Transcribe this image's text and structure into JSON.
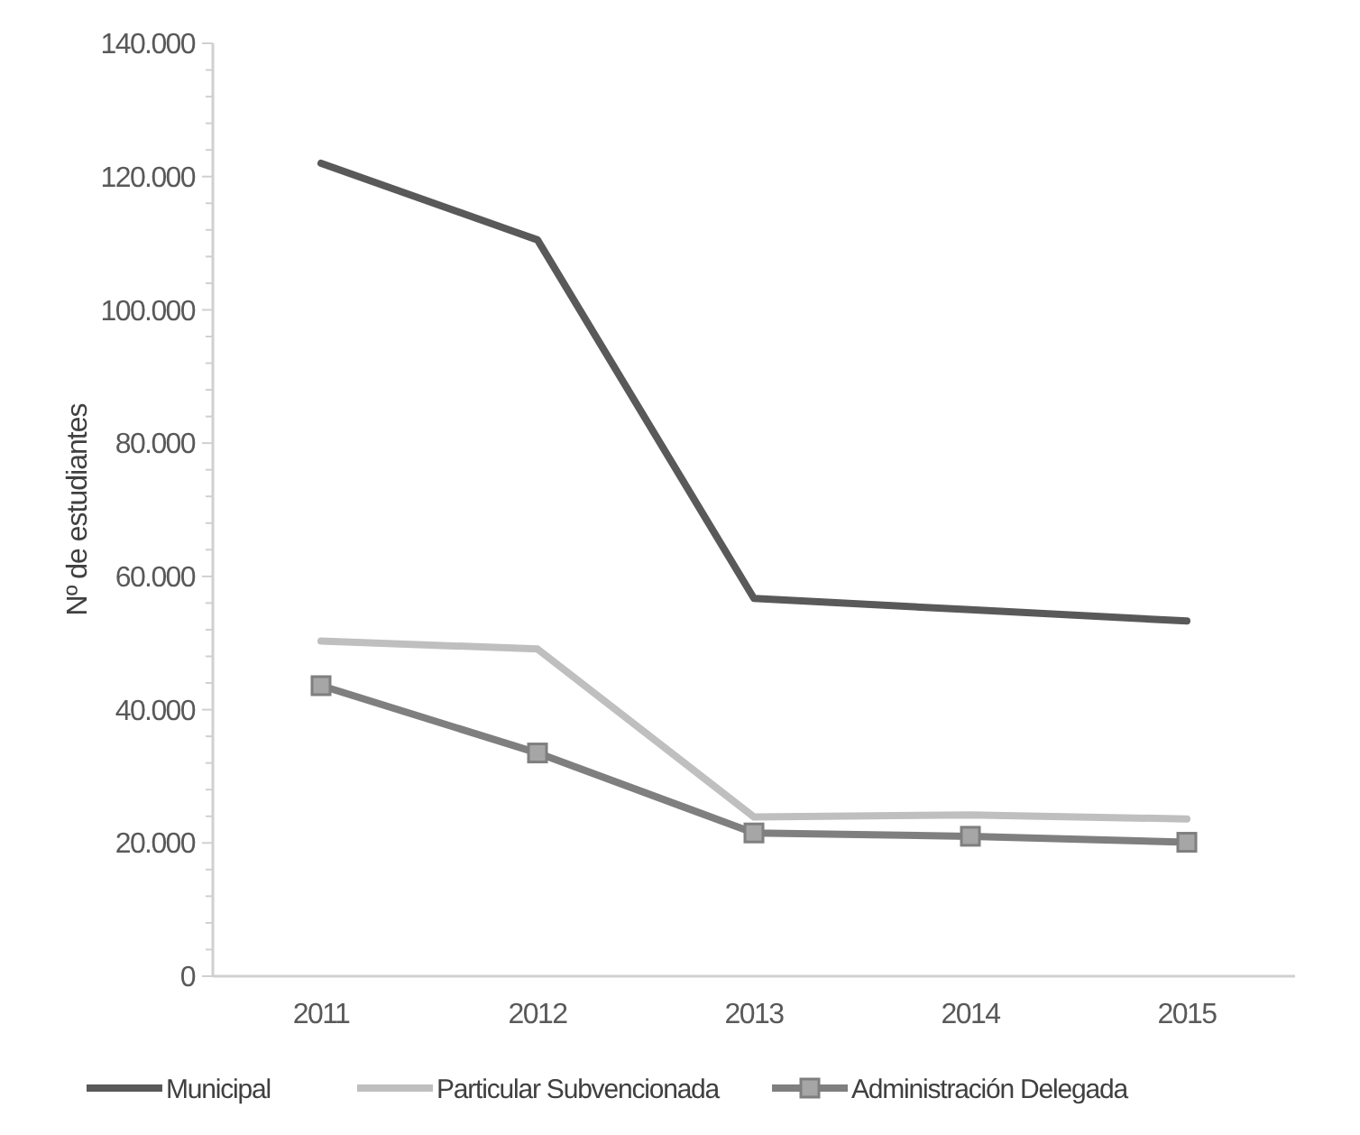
{
  "chart_data": {
    "type": "line",
    "ylabel": "Nº de estudiantes",
    "categories": [
      "2011",
      "2012",
      "2013",
      "2014",
      "2015"
    ],
    "series": [
      {
        "name": "Municipal",
        "color": "#595959",
        "marker": "none",
        "values": [
          122000,
          110500,
          56700,
          55000,
          53300
        ]
      },
      {
        "name": "Particular Subvencionada",
        "color": "#bfbfbf",
        "marker": "none",
        "values": [
          50300,
          49100,
          23900,
          24200,
          23600
        ]
      },
      {
        "name": "Administración Delegada",
        "color": "#7f7f7f",
        "marker": "square",
        "values": [
          43600,
          33500,
          21500,
          21000,
          20100
        ]
      }
    ],
    "ylim": [
      0,
      140000
    ],
    "yticks": [
      {
        "value": 0,
        "label": "0"
      },
      {
        "value": 4000,
        "label": null
      },
      {
        "value": 8000,
        "label": null
      },
      {
        "value": 12000,
        "label": null
      },
      {
        "value": 16000,
        "label": null
      },
      {
        "value": 20000,
        "label": "20.000"
      },
      {
        "value": 24000,
        "label": null
      },
      {
        "value": 28000,
        "label": null
      },
      {
        "value": 32000,
        "label": null
      },
      {
        "value": 36000,
        "label": null
      },
      {
        "value": 40000,
        "label": "40.000"
      },
      {
        "value": 44000,
        "label": null
      },
      {
        "value": 48000,
        "label": null
      },
      {
        "value": 52000,
        "label": null
      },
      {
        "value": 56000,
        "label": null
      },
      {
        "value": 60000,
        "label": "60.000"
      },
      {
        "value": 64000,
        "label": null
      },
      {
        "value": 68000,
        "label": null
      },
      {
        "value": 72000,
        "label": null
      },
      {
        "value": 76000,
        "label": null
      },
      {
        "value": 80000,
        "label": "80.000"
      },
      {
        "value": 84000,
        "label": null
      },
      {
        "value": 88000,
        "label": null
      },
      {
        "value": 92000,
        "label": null
      },
      {
        "value": 96000,
        "label": null
      },
      {
        "value": 100000,
        "label": "100.000"
      },
      {
        "value": 104000,
        "label": null
      },
      {
        "value": 108000,
        "label": null
      },
      {
        "value": 112000,
        "label": null
      },
      {
        "value": 116000,
        "label": null
      },
      {
        "value": 120000,
        "label": "120.000"
      },
      {
        "value": 124000,
        "label": null
      },
      {
        "value": 128000,
        "label": null
      },
      {
        "value": 132000,
        "label": null
      },
      {
        "value": 136000,
        "label": null
      },
      {
        "value": 140000,
        "label": "140.000"
      }
    ],
    "grid": false,
    "legend": "bottom",
    "line_style": "solid"
  }
}
